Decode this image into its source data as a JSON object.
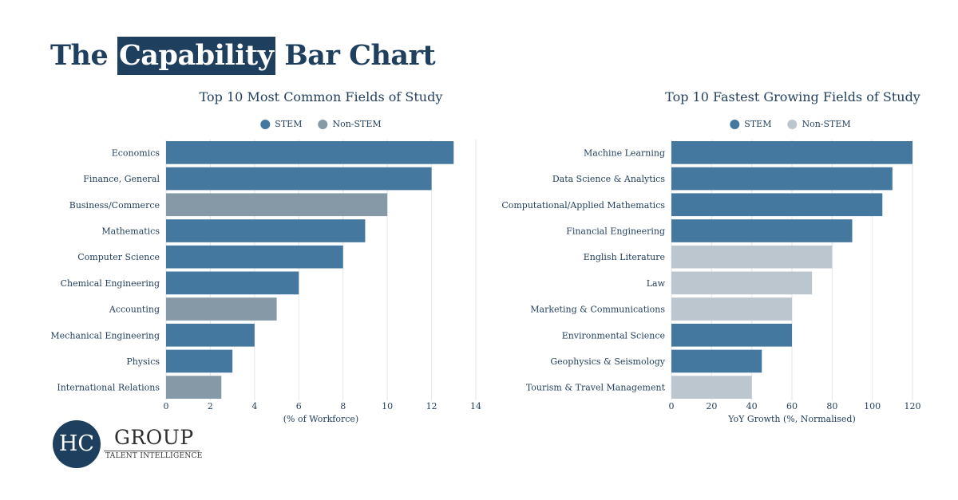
{
  "title": {
    "before": "The ",
    "highlight": "Capability",
    "after": " Bar Chart"
  },
  "logo": {
    "mark": "HC",
    "word": "GROUP",
    "subtitle": "TALENT INTELLIGENCE"
  },
  "colors": {
    "stem": "#44789f",
    "nonstem_left": "#8599a6",
    "nonstem_right": "#bcc6cf",
    "text": "#24405e"
  },
  "chart_data": [
    {
      "type": "bar",
      "orientation": "horizontal",
      "title": "Top 10 Most Common Fields of Study",
      "legend": [
        "STEM",
        "Non-STEM"
      ],
      "legend_position": "top-center",
      "xlabel": "(% of Workforce)",
      "xlim": [
        0,
        14
      ],
      "ticks": [
        0,
        2,
        4,
        6,
        8,
        10,
        12,
        14
      ],
      "grid": true,
      "categories": [
        "Economics",
        "Finance, General",
        "Business/Commerce",
        "Mathematics",
        "Computer Science",
        "Chemical Engineering",
        "Accounting",
        "Mechanical Engineering",
        "Physics",
        "International Relations"
      ],
      "values": [
        13,
        12,
        10,
        9,
        8,
        6,
        5,
        4,
        3,
        2.5
      ],
      "group": [
        "STEM",
        "STEM",
        "Non-STEM",
        "STEM",
        "STEM",
        "STEM",
        "Non-STEM",
        "STEM",
        "STEM",
        "Non-STEM"
      ]
    },
    {
      "type": "bar",
      "orientation": "horizontal",
      "title": "Top 10 Fastest Growing Fields of Study",
      "legend": [
        "STEM",
        "Non-STEM"
      ],
      "legend_position": "top-center",
      "xlabel": "YoY Growth (%, Normalised)",
      "xlim": [
        0,
        120
      ],
      "ticks": [
        0,
        20,
        40,
        60,
        80,
        100,
        120
      ],
      "grid": true,
      "categories": [
        "Machine Learning",
        "Data Science & Analytics",
        "Computational/Applied Mathematics",
        "Financial Engineering",
        "English Literature",
        "Law",
        "Marketing & Communications",
        "Environmental Science",
        "Geophysics & Seismology",
        "Tourism & Travel Management"
      ],
      "values": [
        120,
        110,
        105,
        90,
        80,
        70,
        60,
        60,
        45,
        40
      ],
      "group": [
        "STEM",
        "STEM",
        "STEM",
        "STEM",
        "Non-STEM",
        "Non-STEM",
        "Non-STEM",
        "STEM",
        "STEM",
        "Non-STEM"
      ]
    }
  ]
}
